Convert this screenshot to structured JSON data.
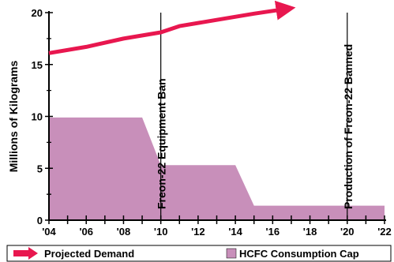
{
  "colors": {
    "projected": "#e8174f",
    "cap_fill": "#c88fba",
    "axis": "#000000"
  },
  "chart_data": {
    "type": "area",
    "ylabel": "Millions of Kilograms",
    "xlabel": "",
    "xlim": [
      2004,
      2022
    ],
    "ylim": [
      0,
      20
    ],
    "x_ticks": [
      2004,
      2006,
      2008,
      2010,
      2012,
      2014,
      2016,
      2018,
      2020,
      2022
    ],
    "x_tick_labels": [
      "'04",
      "'06",
      "'08",
      "'10",
      "'12",
      "'14",
      "'16",
      "'18",
      "'20",
      "'22"
    ],
    "y_ticks": [
      0,
      5,
      10,
      15,
      20
    ],
    "y_tick_labels": [
      "0",
      "5",
      "10",
      "15",
      "20"
    ],
    "series": [
      {
        "name": "Projected Demand",
        "type": "line",
        "x": [
          2004,
          2006,
          2008,
          2010,
          2011,
          2013,
          2015,
          2016.5
        ],
        "y": [
          16.1,
          16.7,
          17.5,
          18.1,
          18.7,
          19.3,
          19.9,
          20.3
        ]
      },
      {
        "name": "HCFC Consumption Cap",
        "type": "area",
        "x": [
          2004,
          2009,
          2010,
          2014,
          2015,
          2022
        ],
        "y": [
          9.9,
          9.9,
          5.3,
          5.3,
          1.4,
          1.4
        ]
      }
    ],
    "annotations": [
      {
        "text": "Freon-22 Equipment Ban",
        "x": 2010
      },
      {
        "text": "Production of Freon-22 Banned",
        "x": 2020
      }
    ],
    "legend": {
      "placement": "bottom",
      "items": [
        "Projected Demand",
        "HCFC Consumption Cap"
      ]
    },
    "grid": false
  }
}
